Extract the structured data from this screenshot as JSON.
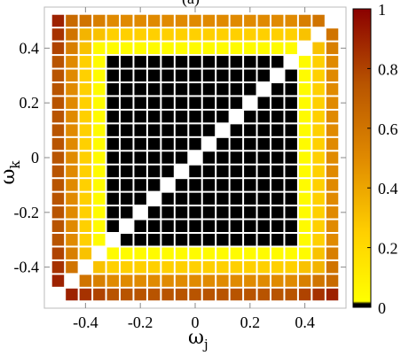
{
  "chart_data": {
    "type": "heatmap",
    "title": "(a)",
    "xlabel": "ω",
    "xlabel_sub": "j",
    "ylabel": "ω",
    "ylabel_sub": "k",
    "grid_size": 21,
    "x_range": [
      -0.5,
      0.5
    ],
    "y_range": [
      -0.5,
      0.5
    ],
    "xlim": [
      -0.55,
      0.55
    ],
    "ylim": [
      -0.55,
      0.55
    ],
    "x_ticks": [
      -0.4,
      -0.2,
      0,
      0.2,
      0.4
    ],
    "x_tick_labels": [
      "-0.4",
      "-0.2",
      "0",
      "0.2",
      "0.4"
    ],
    "y_ticks": [
      -0.4,
      -0.2,
      0,
      0.2,
      0.4
    ],
    "y_tick_labels": [
      "-0.4",
      "-0.2",
      "0",
      "0.2",
      "0.4"
    ],
    "colorbar": {
      "min": 0,
      "max": 1,
      "ticks": [
        0,
        0.2,
        0.4,
        0.6,
        0.8,
        1
      ],
      "tick_labels": [
        "0",
        "0.2",
        "0.4",
        "0.6",
        "0.8",
        "1"
      ],
      "colormap": [
        "#000000",
        "#ffff00",
        "#ffd000",
        "#e08a00",
        "#b85400",
        "#8b0000"
      ]
    },
    "diagonal_value": null,
    "locked_block": {
      "index_from": 4,
      "index_to": 17,
      "value": 0
    },
    "boundary_value": 0.02,
    "outer_value_rule": "distance-from-locked-block: values rising from about 0.25 at the block edge to about 0.95 at the corners"
  }
}
